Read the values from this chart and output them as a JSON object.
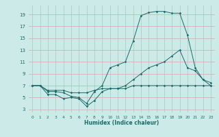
{
  "xlabel": "Humidex (Indice chaleur)",
  "bg_color": "#cceae7",
  "line_color": "#1a6b6b",
  "grid_color_h": "#e8c8c8",
  "grid_color_v": "#c8d8d0",
  "x_ticks": [
    0,
    1,
    2,
    3,
    4,
    5,
    6,
    7,
    8,
    9,
    10,
    11,
    12,
    13,
    14,
    15,
    16,
    17,
    18,
    19,
    20,
    21,
    22,
    23
  ],
  "y_ticks": [
    3,
    5,
    7,
    9,
    11,
    13,
    15,
    17,
    19
  ],
  "xlim": [
    -0.5,
    23.5
  ],
  "ylim": [
    2.5,
    20.5
  ],
  "series1_x": [
    0,
    1,
    2,
    3,
    4,
    5,
    6,
    7,
    8,
    9,
    10,
    11,
    12,
    13,
    14,
    15,
    16,
    17,
    18,
    19,
    20,
    21,
    22,
    23
  ],
  "series1_y": [
    7,
    7,
    6,
    6,
    5.8,
    5.2,
    5,
    4,
    6,
    7,
    10,
    10.5,
    11,
    14.5,
    18.8,
    19.3,
    19.5,
    19.5,
    19.2,
    19.2,
    15.5,
    10,
    8,
    7.5
  ],
  "series2_x": [
    0,
    1,
    2,
    3,
    4,
    5,
    6,
    7,
    8,
    9,
    10,
    11,
    12,
    13,
    14,
    15,
    16,
    17,
    18,
    19,
    20,
    21,
    22,
    23
  ],
  "series2_y": [
    7,
    7,
    5.5,
    5.5,
    4.8,
    5,
    4.8,
    3.5,
    4.5,
    6,
    6.5,
    6.5,
    7,
    8,
    9,
    10,
    10.5,
    11,
    12,
    13,
    10,
    9.5,
    8,
    7
  ],
  "series3_x": [
    0,
    1,
    2,
    3,
    4,
    5,
    6,
    7,
    8,
    9,
    10,
    11,
    12,
    13,
    14,
    15,
    16,
    17,
    18,
    19,
    20,
    21,
    22,
    23
  ],
  "series3_y": [
    7,
    7,
    6.2,
    6.2,
    6.2,
    5.8,
    5.8,
    5.8,
    6.2,
    6.5,
    6.5,
    6.5,
    6.5,
    7,
    7,
    7,
    7,
    7,
    7,
    7,
    7,
    7,
    7,
    7
  ]
}
